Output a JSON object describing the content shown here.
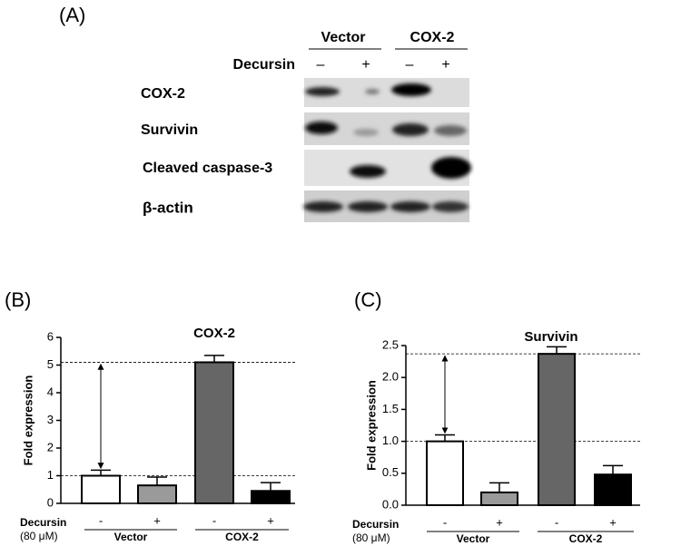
{
  "panels": [
    "(A)",
    "(B)",
    "(C)"
  ],
  "blot": {
    "groups": [
      "Vector",
      "COX-2"
    ],
    "treatment": "Decursin",
    "signs": [
      "–",
      "+",
      "–",
      "+"
    ],
    "rows": [
      "COX-2",
      "Survivin",
      "Cleaved caspase-3",
      "β-actin"
    ]
  },
  "chart_data": [
    {
      "type": "bar",
      "title": "COX-2",
      "ylabel": "Fold expression",
      "categories": [
        "-",
        "+",
        "-",
        "+"
      ],
      "groups": [
        "Vector",
        "COX-2"
      ],
      "treatment_label": "Decursin",
      "treatment_unit": "(80 μM)",
      "values": [
        1.0,
        0.65,
        5.1,
        0.45
      ],
      "errors": [
        0.2,
        0.3,
        0.25,
        0.3
      ],
      "colors": [
        "#ffffff",
        "#9a9a9a",
        "#666666",
        "#000000"
      ],
      "ylim": [
        0,
        6
      ],
      "yticks": [
        0,
        1,
        2,
        3,
        4,
        5,
        6
      ]
    },
    {
      "type": "bar",
      "title": "Survivin",
      "ylabel": "Fold expression",
      "categories": [
        "-",
        "+",
        "-",
        "+"
      ],
      "groups": [
        "Vector",
        "COX-2"
      ],
      "treatment_label": "Decursin",
      "treatment_unit": "(80 μM)",
      "values": [
        1.0,
        0.2,
        2.37,
        0.48
      ],
      "errors": [
        0.1,
        0.15,
        0.11,
        0.14
      ],
      "colors": [
        "#ffffff",
        "#9a9a9a",
        "#666666",
        "#000000"
      ],
      "ylim": [
        0,
        2.5
      ],
      "yticks": [
        {
          "value": 0,
          "label": "0.0"
        },
        {
          "value": 0.5,
          "label": "0.5"
        },
        {
          "value": 1,
          "label": "1.0"
        },
        {
          "value": 1.5,
          "label": "1.5"
        },
        {
          "value": 2,
          "label": "2.0"
        },
        {
          "value": 2.5,
          "label": "2.5"
        }
      ]
    }
  ]
}
